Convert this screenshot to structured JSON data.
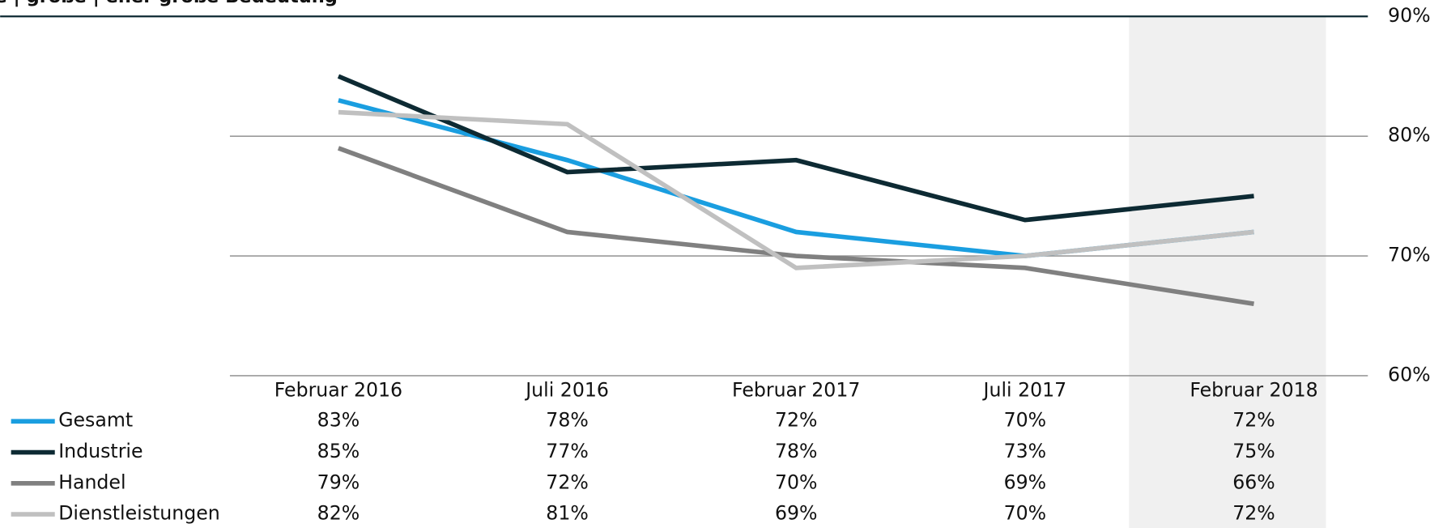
{
  "chart_data": {
    "type": "line",
    "title": "e | große | eher große Bedeutung",
    "categories": [
      "Februar 2016",
      "Juli 2016",
      "Februar 2017",
      "Juli 2017",
      "Februar 2018"
    ],
    "series": [
      {
        "name": "Gesamt",
        "color": "#1a9ee0",
        "values": [
          83,
          78,
          72,
          70,
          72
        ],
        "value_labels": [
          "83%",
          "78%",
          "72%",
          "70%",
          "72%"
        ]
      },
      {
        "name": "Industrie",
        "color": "#0d2a33",
        "values": [
          85,
          77,
          78,
          73,
          75
        ],
        "value_labels": [
          "85%",
          "77%",
          "78%",
          "73%",
          "75%"
        ]
      },
      {
        "name": "Handel",
        "color": "#808080",
        "values": [
          79,
          72,
          70,
          69,
          66
        ],
        "value_labels": [
          "79%",
          "72%",
          "70%",
          "69%",
          "66%"
        ]
      },
      {
        "name": "Dienstleistungen",
        "color": "#c0c0c0",
        "values": [
          82,
          81,
          69,
          70,
          72
        ],
        "value_labels": [
          "82%",
          "81%",
          "69%",
          "70%",
          "72%"
        ]
      }
    ],
    "ylim": [
      60,
      90
    ],
    "yticks": [
      {
        "value": 60,
        "label": "60%"
      },
      {
        "value": 70,
        "label": "70%"
      },
      {
        "value": 80,
        "label": "80%"
      },
      {
        "value": 90,
        "label": "90%"
      }
    ],
    "grid": true,
    "highlight_category": 4,
    "highlight_color": "#f0f0f0"
  }
}
